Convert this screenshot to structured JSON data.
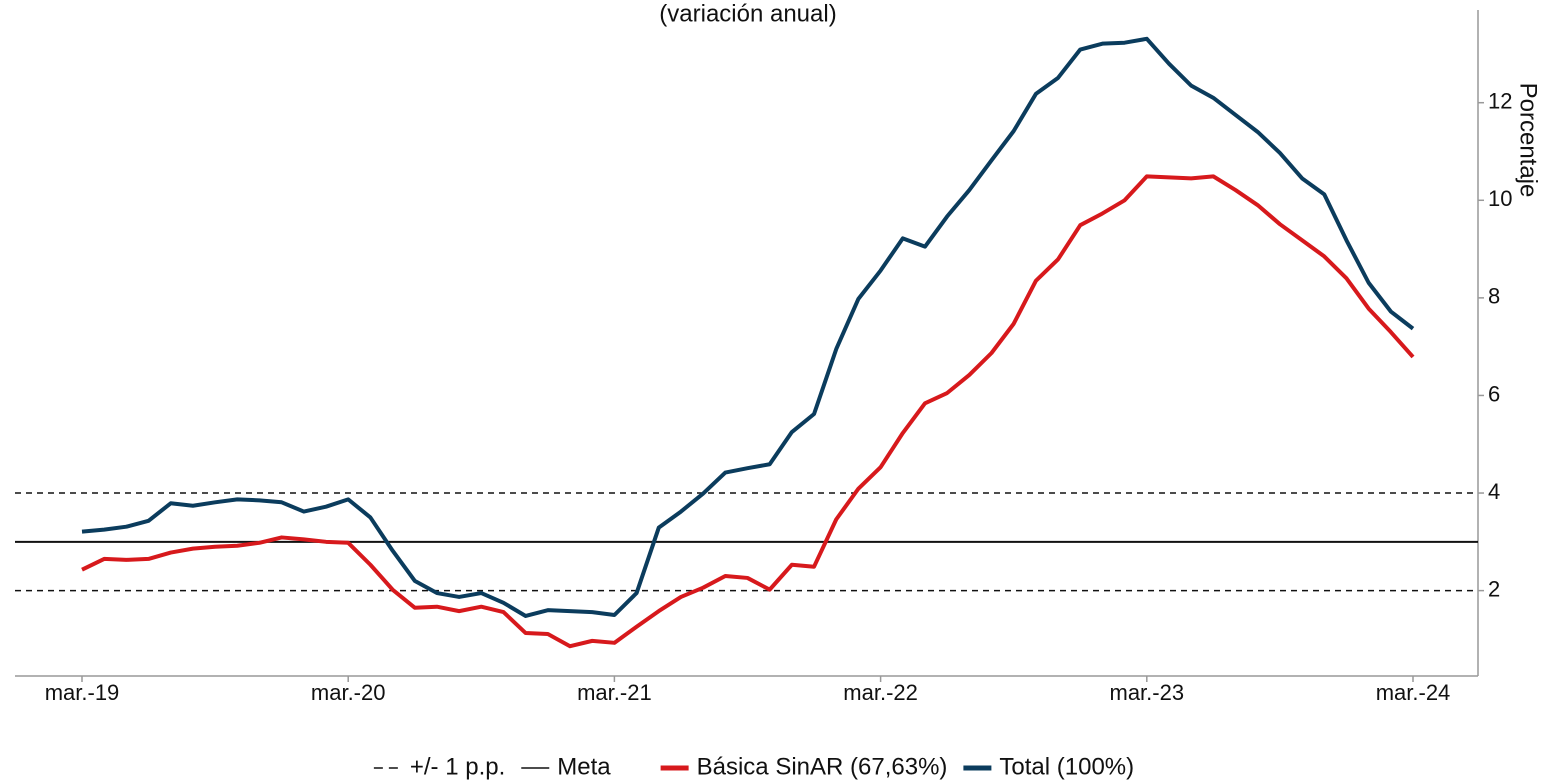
{
  "chart_data": {
    "type": "line",
    "title": "(variación anual)",
    "y_label": "Porcentaje",
    "categories": [
      "mar.-19",
      null,
      null,
      null,
      null,
      null,
      null,
      null,
      null,
      null,
      null,
      null,
      "mar.-20",
      null,
      null,
      null,
      null,
      null,
      null,
      null,
      null,
      null,
      null,
      null,
      "mar.-21",
      null,
      null,
      null,
      null,
      null,
      null,
      null,
      null,
      null,
      null,
      null,
      "mar.-22",
      null,
      null,
      null,
      null,
      null,
      null,
      null,
      null,
      null,
      null,
      null,
      "mar.-23",
      null,
      null,
      null,
      null,
      null,
      null,
      null,
      null,
      null,
      null,
      null,
      "mar.-24"
    ],
    "series": [
      {
        "name": "Básica SinAR (67,63%)",
        "color": "#d7191c",
        "values": [
          2.43,
          2.65,
          2.63,
          2.65,
          2.78,
          2.86,
          2.9,
          2.92,
          2.98,
          3.09,
          3.05,
          3.0,
          2.98,
          2.53,
          2.02,
          1.65,
          1.67,
          1.58,
          1.67,
          1.56,
          1.13,
          1.11,
          0.86,
          0.97,
          0.93,
          1.26,
          1.58,
          1.87,
          2.06,
          2.3,
          2.26,
          2.02,
          2.53,
          2.49,
          3.46,
          4.09,
          4.53,
          5.23,
          5.84,
          6.05,
          6.42,
          6.87,
          7.47,
          8.35,
          8.79,
          9.49,
          9.73,
          10.0,
          10.49,
          10.47,
          10.45,
          10.49,
          10.21,
          9.9,
          9.51,
          9.18,
          8.85,
          8.4,
          7.78,
          7.3,
          6.79
        ]
      },
      {
        "name": "Total (100%)",
        "color": "#0b3c5d",
        "values": [
          3.21,
          3.25,
          3.31,
          3.43,
          3.79,
          3.74,
          3.81,
          3.87,
          3.85,
          3.81,
          3.62,
          3.72,
          3.87,
          3.5,
          2.82,
          2.2,
          1.95,
          1.87,
          1.95,
          1.75,
          1.48,
          1.6,
          1.58,
          1.56,
          1.5,
          1.95,
          3.29,
          3.62,
          3.99,
          4.42,
          4.51,
          4.59,
          5.25,
          5.62,
          6.95,
          7.98,
          8.56,
          9.22,
          9.05,
          9.67,
          10.21,
          10.82,
          11.42,
          12.18,
          12.51,
          13.09,
          13.21,
          13.23,
          13.31,
          12.8,
          12.35,
          12.1,
          11.75,
          11.4,
          10.97,
          10.45,
          10.12,
          9.18,
          8.31,
          7.72,
          7.37
        ]
      }
    ],
    "reference_lines": [
      {
        "name": "+/- 1 p.p.",
        "values": [
          2,
          4
        ],
        "style": "dashed",
        "color": "#111111"
      },
      {
        "name": "Meta",
        "values": [
          3
        ],
        "style": "solid",
        "color": "#111111"
      }
    ],
    "ylim": [
      0.25,
      13.9
    ],
    "yticks": [
      2,
      4,
      6,
      8,
      10,
      12
    ],
    "y_axis_side": "right",
    "grid": false,
    "legend": "bottom"
  }
}
